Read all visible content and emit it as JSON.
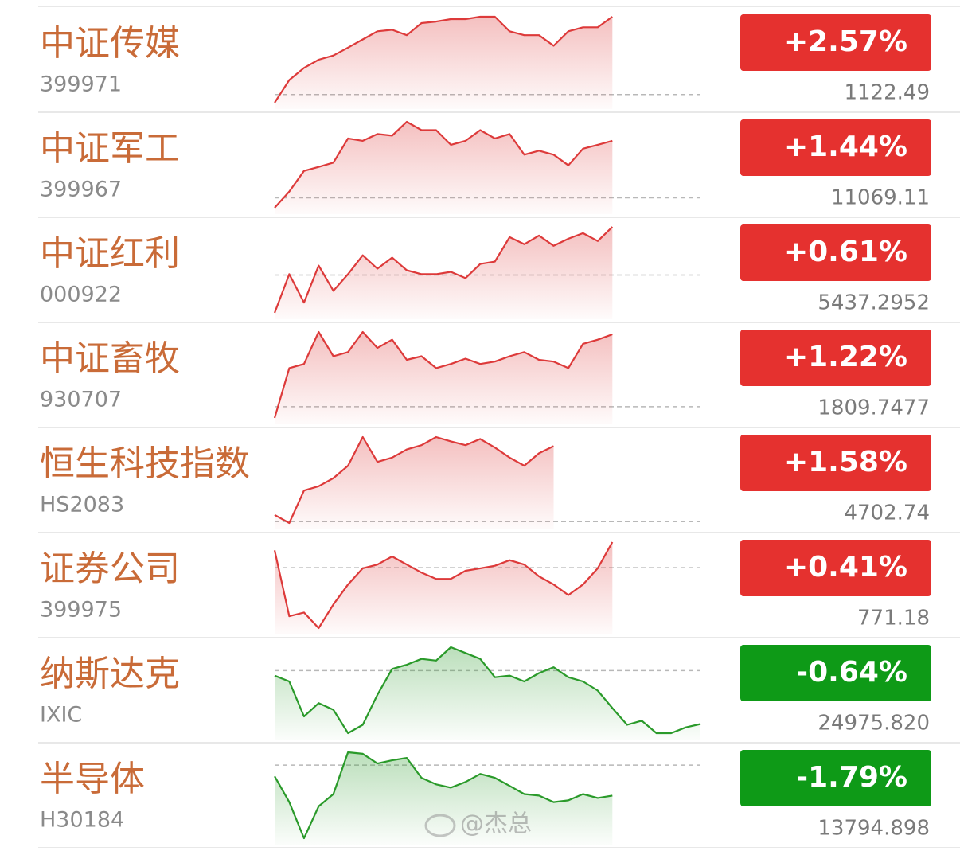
{
  "rows": [
    {
      "name": "中证传媒",
      "code": "399971",
      "change": "+2.57%",
      "price": "1122.49",
      "color": "#e5312f",
      "line_color": "#dd3a3a",
      "trend": [
        -0.27,
        0.48,
        0.88,
        1.15,
        1.29,
        1.55,
        1.82,
        2.09,
        2.14,
        1.96,
        2.36,
        2.41,
        2.49,
        2.49,
        2.57,
        2.57,
        2.09,
        1.96,
        1.96,
        1.61,
        2.09,
        2.22,
        2.22,
        2.57,
        null,
        null,
        null,
        null,
        null,
        null
      ]
    },
    {
      "name": "中证军工",
      "code": "399967",
      "change": "+1.44%",
      "price": "11069.11",
      "color": "#e5312f",
      "line_color": "#dd3a3a",
      "trend": [
        -0.25,
        0.16,
        0.68,
        0.78,
        0.89,
        1.5,
        1.44,
        1.61,
        1.57,
        1.92,
        1.71,
        1.71,
        1.34,
        1.44,
        1.71,
        1.5,
        1.61,
        1.09,
        1.19,
        1.09,
        0.82,
        1.24,
        1.34,
        1.44,
        null,
        null,
        null,
        null,
        null,
        null
      ]
    },
    {
      "name": "中证红利",
      "code": "000922",
      "change": "+0.61%",
      "price": "5437.2952",
      "color": "#e5312f",
      "line_color": "#dd3a3a",
      "trend": [
        -0.48,
        0.01,
        -0.35,
        0.12,
        -0.2,
        0.01,
        0.25,
        0.08,
        0.22,
        0.06,
        0.01,
        0.01,
        0.04,
        -0.04,
        0.14,
        0.17,
        0.48,
        0.39,
        0.5,
        0.37,
        0.46,
        0.53,
        0.43,
        0.61,
        null,
        null,
        null,
        null,
        null,
        null
      ]
    },
    {
      "name": "中证畜牧",
      "code": "930707",
      "change": "+1.22%",
      "price": "1809.7477",
      "color": "#e5312f",
      "line_color": "#dd3a3a",
      "trend": [
        -0.19,
        0.65,
        0.72,
        1.26,
        0.85,
        0.92,
        1.26,
        0.99,
        1.13,
        0.79,
        0.85,
        0.65,
        0.72,
        0.81,
        0.72,
        0.76,
        0.85,
        0.92,
        0.79,
        0.76,
        0.65,
        1.06,
        1.13,
        1.22,
        null,
        null,
        null,
        null,
        null,
        null
      ]
    },
    {
      "name": "恒生科技指数",
      "code": "HS2083",
      "change": "+1.58%",
      "price": "4702.74",
      "color": "#e5312f",
      "line_color": "#dd3a3a",
      "trend": [
        0.14,
        -0.03,
        0.65,
        0.74,
        0.91,
        1.17,
        1.77,
        1.25,
        1.34,
        1.51,
        1.6,
        1.77,
        1.68,
        1.6,
        1.73,
        1.55,
        1.34,
        1.17,
        1.43,
        1.58,
        null,
        null,
        null,
        null,
        null,
        null,
        null,
        null,
        null,
        null
      ]
    },
    {
      "name": "证券公司",
      "code": "399975",
      "change": "+0.41%",
      "price": "771.18",
      "color": "#e5312f",
      "line_color": "#dd3a3a",
      "trend": [
        0.28,
        -0.78,
        -0.72,
        -0.97,
        -0.59,
        -0.27,
        -0.01,
        0.05,
        0.18,
        0.05,
        -0.08,
        -0.18,
        -0.18,
        -0.05,
        -0.01,
        0.03,
        0.12,
        0.05,
        -0.14,
        -0.27,
        -0.44,
        -0.27,
        -0.01,
        0.41,
        null,
        null,
        null,
        null,
        null,
        null
      ]
    },
    {
      "name": "纳斯达克",
      "code": "IXIC",
      "change": "-0.64%",
      "price": "24975.820",
      "color": "#0e9a17",
      "line_color": "#2a9a2a",
      "trend": [
        -0.06,
        -0.13,
        -0.55,
        -0.39,
        -0.47,
        -0.75,
        -0.65,
        -0.29,
        0.02,
        0.07,
        0.14,
        0.12,
        0.28,
        0.21,
        0.14,
        -0.08,
        -0.06,
        -0.13,
        -0.03,
        0.04,
        -0.08,
        -0.13,
        -0.24,
        -0.45,
        -0.65,
        -0.6,
        -0.75,
        -0.75,
        -0.68,
        -0.64
      ]
    },
    {
      "name": "半导体",
      "code": "H30184",
      "change": "-1.79%",
      "price": "13794.898",
      "color": "#0e9a17",
      "line_color": "#2a9a2a",
      "trend": [
        -0.66,
        -2.17,
        -4.29,
        -2.42,
        -1.7,
        0.75,
        0.66,
        0.09,
        0.28,
        0.42,
        -0.75,
        -1.13,
        -1.32,
        -0.99,
        -0.52,
        -0.75,
        -1.22,
        -1.7,
        -1.79,
        -2.17,
        -2.07,
        -1.7,
        -1.93,
        -1.79,
        null,
        null,
        null,
        null,
        null,
        null
      ]
    }
  ],
  "watermark": "@杰总"
}
